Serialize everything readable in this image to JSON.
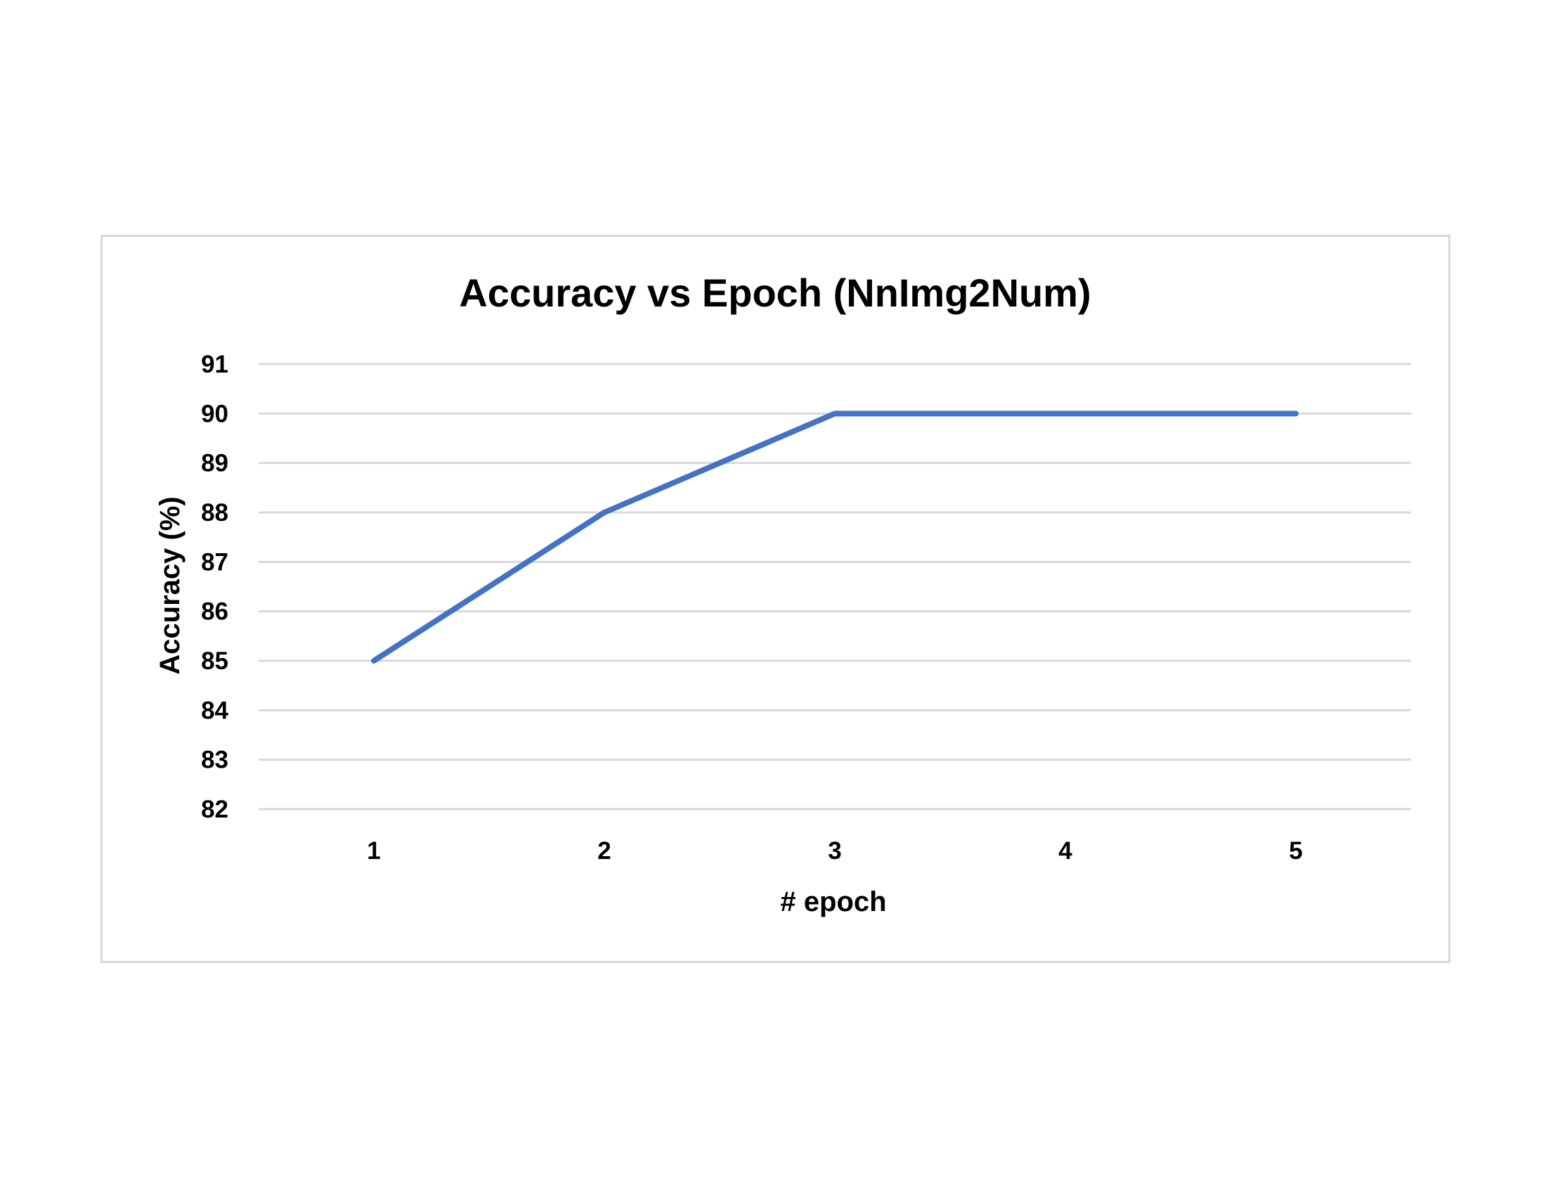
{
  "chart_data": {
    "type": "line",
    "title": "Accuracy vs Epoch (NnImg2Num)",
    "xlabel": "# epoch",
    "ylabel": "Accuracy (%)",
    "categories": [
      "1",
      "2",
      "3",
      "4",
      "5"
    ],
    "series": [
      {
        "values": [
          85,
          88,
          90,
          90,
          90
        ],
        "color": "#4472c4"
      }
    ],
    "ylim": [
      82,
      91
    ],
    "yticks": [
      91,
      90,
      89,
      88,
      87,
      86,
      85,
      84,
      83,
      82
    ],
    "grid": true,
    "legend": "none"
  }
}
